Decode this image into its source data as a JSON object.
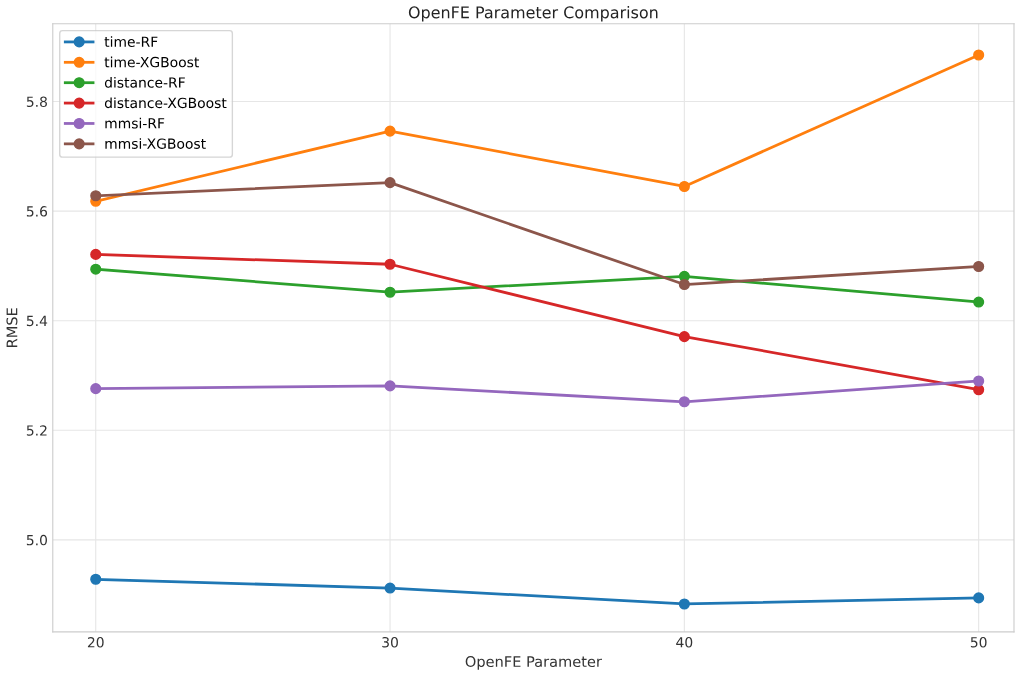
{
  "chart_data": {
    "type": "line",
    "title": "OpenFE Parameter Comparison",
    "xlabel": "OpenFE Parameter",
    "ylabel": "RMSE",
    "x": [
      20,
      30,
      40,
      50
    ],
    "xlim": [
      18.54,
      51.2
    ],
    "xticks": [
      20,
      30,
      40,
      50
    ],
    "ylim": [
      4.832,
      5.942
    ],
    "yticks": [
      {
        "value": 5.0,
        "label": "5.0"
      },
      {
        "value": 5.2,
        "label": "5.2"
      },
      {
        "value": 5.4,
        "label": "5.4"
      },
      {
        "value": 5.6,
        "label": "5.6"
      },
      {
        "value": 5.8,
        "label": "5.8"
      }
    ],
    "grid": true,
    "legend": "top left",
    "marker": "circle",
    "line_style": "solid",
    "series": [
      {
        "name": "time-RF",
        "color": "#1f77b4",
        "values": [
          4.928,
          4.912,
          4.883,
          4.894
        ]
      },
      {
        "name": "time-XGBoost",
        "color": "#ff7f0e",
        "values": [
          5.618,
          5.746,
          5.645,
          5.885
        ]
      },
      {
        "name": "distance-RF",
        "color": "#2ca02c",
        "values": [
          5.494,
          5.452,
          5.481,
          5.434
        ]
      },
      {
        "name": "distance-XGBoost",
        "color": "#d62728",
        "values": [
          5.521,
          5.503,
          5.371,
          5.274
        ]
      },
      {
        "name": "mmsi-RF",
        "color": "#9467bd",
        "values": [
          5.276,
          5.281,
          5.252,
          5.29
        ]
      },
      {
        "name": "mmsi-XGBoost",
        "color": "#8c564b",
        "values": [
          5.628,
          5.652,
          5.466,
          5.499
        ]
      }
    ]
  }
}
